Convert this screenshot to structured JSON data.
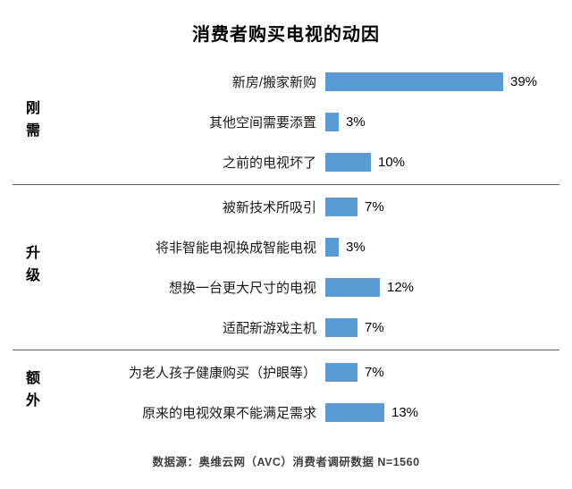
{
  "chart_data": {
    "type": "bar",
    "orientation": "horizontal",
    "title": "消费者购买电视的动因",
    "source": "数据源：奥维云网（AVC）消费者调研数据 N=1560",
    "bar_color": "#5B9BD5",
    "xlim": [
      0,
      39
    ],
    "value_unit": "%",
    "groups": [
      {
        "label": "刚需",
        "items": [
          {
            "category": "新房/搬家新购",
            "value": 39,
            "value_label": "39%"
          },
          {
            "category": "其他空间需要添置",
            "value": 3,
            "value_label": "3%"
          },
          {
            "category": "之前的电视坏了",
            "value": 10,
            "value_label": "10%"
          }
        ]
      },
      {
        "label": "升级",
        "items": [
          {
            "category": "被新技术所吸引",
            "value": 7,
            "value_label": "7%"
          },
          {
            "category": "将非智能电视换成智能电视",
            "value": 3,
            "value_label": "3%"
          },
          {
            "category": "想换一台更大尺寸的电视",
            "value": 12,
            "value_label": "12%"
          },
          {
            "category": "适配新游戏主机",
            "value": 7,
            "value_label": "7%"
          }
        ]
      },
      {
        "label": "额外",
        "items": [
          {
            "category": "为老人孩子健康购买（护眼等）",
            "value": 7,
            "value_label": "7%"
          },
          {
            "category": "原来的电视效果不能满足需求",
            "value": 13,
            "value_label": "13%"
          }
        ]
      }
    ]
  }
}
